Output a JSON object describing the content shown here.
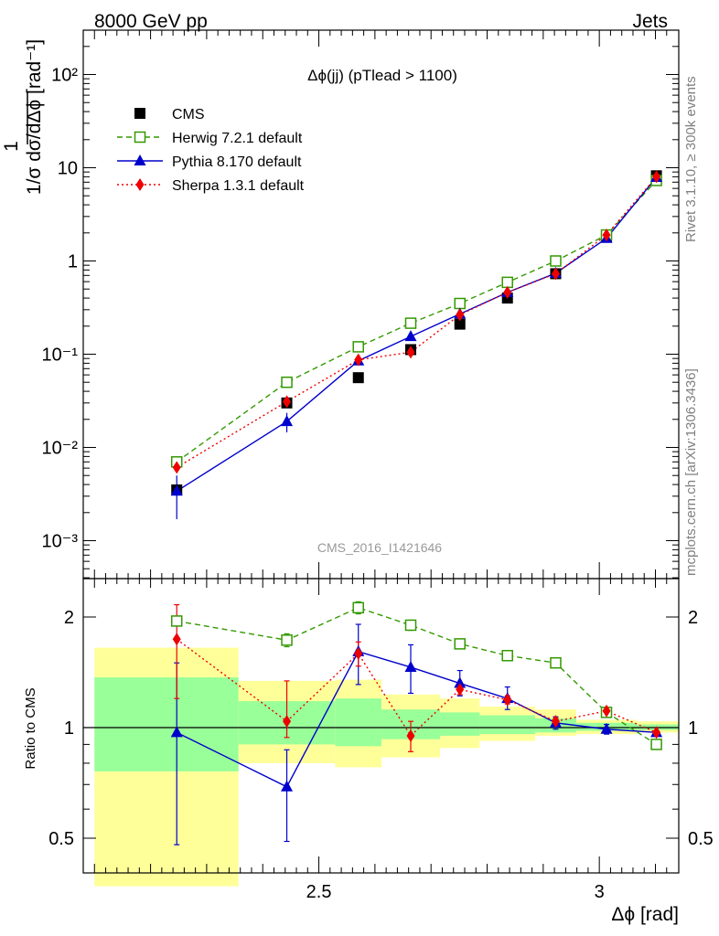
{
  "header": {
    "left": "8000 GeV pp",
    "right": "Jets"
  },
  "side_text": {
    "top": "Rivet 3.1.10, ≥ 300k events",
    "bottom": "mcplots.cern.ch [arXiv:1306.3436]"
  },
  "chart_data": [
    {
      "type": "line",
      "title": "Δϕ(jj) (pTlead >  1100)",
      "watermark": "CMS_2016_I1421646",
      "ylabel": "1/σ dσ/dΔϕ [rad⁻¹]",
      "yscale": "log",
      "ylim": [
        0.0005,
        300
      ],
      "xlim": [
        2.08,
        3.1416
      ],
      "ytick_labels": [
        "10⁻³",
        "10⁻²",
        "10⁻¹",
        "1",
        "10",
        "10²"
      ],
      "ytick_values": [
        0.001,
        0.01,
        0.1,
        1,
        10,
        100
      ],
      "legend_position": "top-left",
      "x": [
        2.2467,
        2.4429,
        2.5704,
        2.6638,
        2.7514,
        2.8362,
        2.9222,
        3.0128,
        3.1018
      ],
      "series": [
        {
          "name": "CMS",
          "color": "#000000",
          "marker": "filled-square",
          "values": [
            0.0035,
            0.03,
            0.056,
            0.112,
            0.21,
            0.4,
            0.73,
            1.8,
            8.2
          ]
        },
        {
          "name": "Herwig 7.2.1 default",
          "color": "#339900",
          "marker": "open-square",
          "line": "dashed",
          "values": [
            0.007,
            0.05,
            0.12,
            0.215,
            0.35,
            0.59,
            1.0,
            1.9,
            7.3
          ]
        },
        {
          "name": "Pythia 8.170 default",
          "color": "#0000cc",
          "marker": "filled-triangle",
          "line": "solid",
          "values": [
            0.0034,
            0.019,
            0.085,
            0.155,
            0.27,
            0.46,
            0.74,
            1.75,
            7.9
          ]
        },
        {
          "name": "Sherpa 1.3.1 default",
          "color": "#ee0000",
          "marker": "filled-diamond",
          "line": "dotted",
          "values": [
            0.0061,
            0.031,
            0.087,
            0.105,
            0.265,
            0.46,
            0.73,
            1.9,
            8.0
          ]
        }
      ]
    },
    {
      "type": "line",
      "ylabel": "Ratio to CMS",
      "xlabel": "Δϕ [rad]",
      "yscale": "log",
      "ylim": [
        0.44,
        2.4
      ],
      "xlim": [
        2.08,
        3.1416
      ],
      "xtick_labels": [
        "2.5",
        "3"
      ],
      "xtick_values": [
        2.5,
        3.0
      ],
      "ytick_labels": [
        "0.5",
        "1",
        "2"
      ],
      "ytick_values": [
        0.5,
        1,
        2
      ],
      "bins": [
        [
          2.1,
          2.3568
        ],
        [
          2.3568,
          2.529
        ],
        [
          2.529,
          2.6117
        ],
        [
          2.6117,
          2.716
        ],
        [
          2.716,
          2.7868
        ],
        [
          2.7868,
          2.8855
        ],
        [
          2.8855,
          2.9589
        ],
        [
          2.9589,
          3.0667
        ],
        [
          3.0667,
          3.1416
        ]
      ],
      "band_total": [
        [
          0.37,
          1.65
        ],
        [
          0.8,
          1.34
        ],
        [
          0.78,
          1.35
        ],
        [
          0.83,
          1.23
        ],
        [
          0.88,
          1.2
        ],
        [
          0.92,
          1.14
        ],
        [
          0.95,
          1.12
        ],
        [
          0.96,
          1.05
        ],
        [
          0.97,
          1.04
        ]
      ],
      "band_stat": [
        [
          0.76,
          1.37
        ],
        [
          0.9,
          1.18
        ],
        [
          0.89,
          1.2
        ],
        [
          0.93,
          1.12
        ],
        [
          0.95,
          1.1
        ],
        [
          0.96,
          1.08
        ],
        [
          0.97,
          1.06
        ],
        [
          0.98,
          1.03
        ],
        [
          0.985,
          1.02
        ]
      ],
      "x": [
        2.2467,
        2.4429,
        2.5704,
        2.6638,
        2.7514,
        2.8362,
        2.9222,
        3.0128,
        3.1018
      ],
      "series": [
        {
          "name": "Herwig 7.2.1 default",
          "color": "#339900",
          "marker": "open-square",
          "line": "dashed",
          "values": [
            1.95,
            1.73,
            2.12,
            1.9,
            1.69,
            1.57,
            1.5,
            1.1,
            0.9
          ],
          "err_low": [
            0.04,
            0.07,
            0.08,
            0.06,
            0.03,
            0.03,
            0.03,
            0.02,
            0.02
          ],
          "err_high": [
            0.04,
            0.07,
            0.08,
            0.06,
            0.03,
            0.03,
            0.03,
            0.02,
            0.02
          ]
        },
        {
          "name": "Pythia 8.170 default",
          "color": "#0000cc",
          "marker": "filled-triangle",
          "line": "solid",
          "values": [
            0.97,
            0.69,
            1.61,
            1.46,
            1.32,
            1.2,
            1.03,
            0.99,
            0.97
          ],
          "err_low": [
            0.49,
            0.2,
            0.3,
            0.22,
            0.1,
            0.08,
            0.04,
            0.03,
            0.01
          ],
          "err_high": [
            0.53,
            0.18,
            0.3,
            0.22,
            0.11,
            0.09,
            0.04,
            0.03,
            0.01
          ]
        },
        {
          "name": "Sherpa 1.3.1 default",
          "color": "#ee0000",
          "marker": "filled-diamond",
          "line": "dotted",
          "values": [
            1.74,
            1.04,
            1.59,
            0.95,
            1.27,
            1.19,
            1.04,
            1.11,
            0.97
          ],
          "err_low": [
            0.54,
            0.1,
            0.12,
            0.09,
            0.04,
            0.03,
            0.02,
            0.02,
            0.01
          ],
          "err_high": [
            0.42,
            0.3,
            0.12,
            0.09,
            0.04,
            0.03,
            0.02,
            0.02,
            0.01
          ]
        }
      ]
    }
  ]
}
